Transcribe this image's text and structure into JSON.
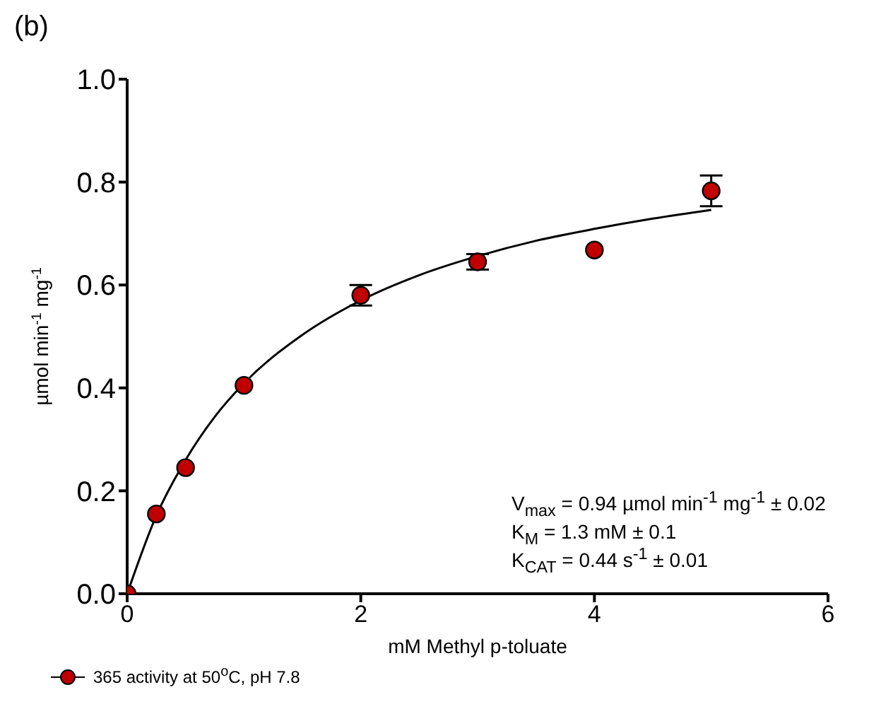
{
  "chart_data": {
    "type": "scatter",
    "title": "(b)",
    "xlabel": "mM Methyl p-toluate",
    "ylabel": "µmol min$^{-1}$ mg$^{-1}$",
    "xlim": [
      0,
      6
    ],
    "xticks": [
      0,
      2,
      4,
      6
    ],
    "ylim": [
      0,
      1
    ],
    "yticks": [
      {
        "value": 0,
        "label": "0.0"
      },
      {
        "value": 0.2,
        "label": "0.2"
      },
      {
        "value": 0.4,
        "label": "0.4"
      },
      {
        "value": 0.6,
        "label": "0.6"
      },
      {
        "value": 0.8,
        "label": "0.8"
      },
      {
        "value": 1,
        "label": "1.0"
      }
    ],
    "grid": false,
    "legend": "bottom",
    "series": [
      {
        "name": "365 activity at 50$^{o}$C, pH 7.8",
        "marker": "circle",
        "color": "#c00000",
        "x": [
          0,
          0.25,
          0.5,
          1,
          2,
          3,
          4,
          5
        ],
        "values": [
          0,
          0.155,
          0.245,
          0.405,
          0.58,
          0.645,
          0.668,
          0.783
        ],
        "errors": [
          null,
          null,
          null,
          null,
          0.02,
          0.015,
          null,
          0.03
        ]
      },
      {
        "type": "line",
        "color": "#000000",
        "x": [
          0,
          0.25,
          0.5,
          0.75,
          1,
          1.5,
          2,
          2.5,
          3,
          3.5,
          4,
          4.5,
          5
        ],
        "values": [
          0,
          0.152,
          0.26,
          0.344,
          0.409,
          0.503,
          0.57,
          0.619,
          0.656,
          0.686,
          0.709,
          0.729,
          0.746
        ]
      }
    ],
    "annotations": [
      "V$_{max}$ = 0.94 µmol min$^{-1}$ mg$^{-1}$ ± 0.02",
      "K$_{M}$ = 1.3 mM ± 0.1",
      "K$_{CAT}$ = 0.44 s$^{-1}$ ± 0.01"
    ]
  }
}
